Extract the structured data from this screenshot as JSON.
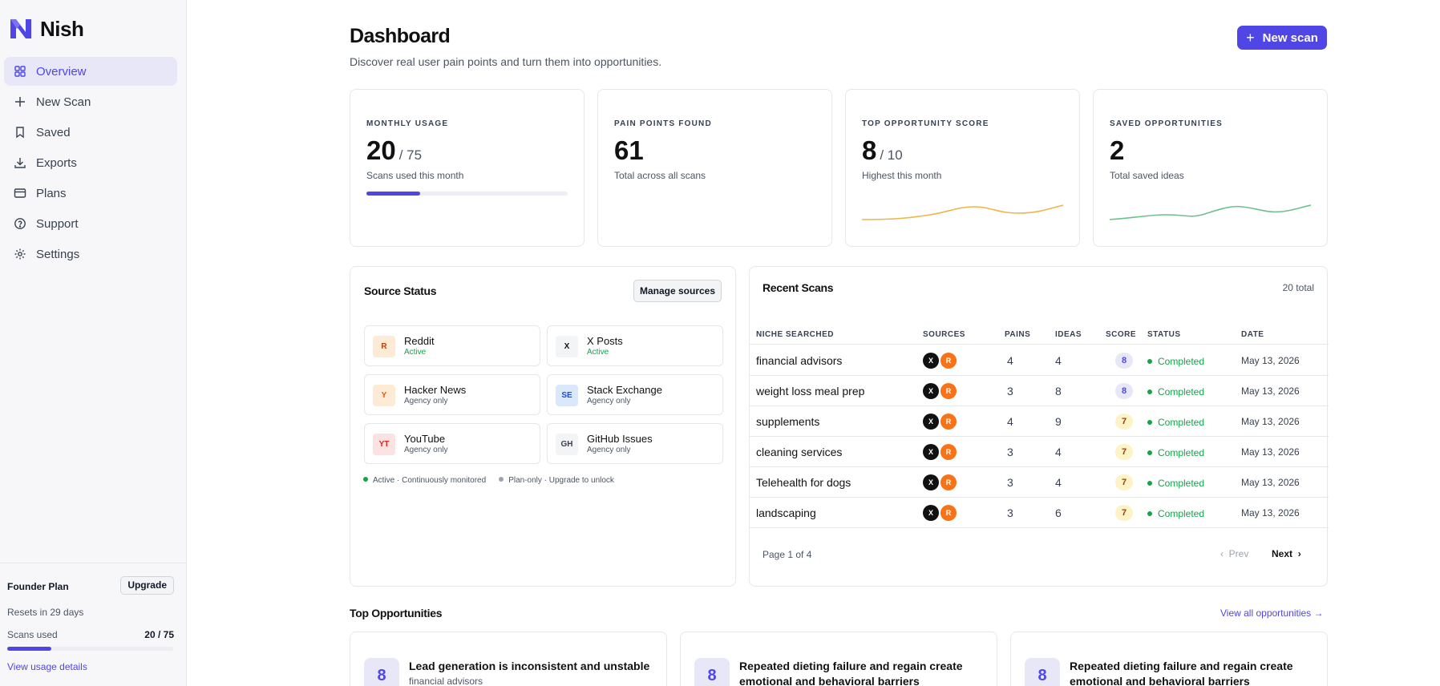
{
  "brand": {
    "name": "Nish"
  },
  "sidebar": {
    "items": [
      {
        "label": "Overview",
        "icon": "grid-icon"
      },
      {
        "label": "New Scan",
        "icon": "plus-icon"
      },
      {
        "label": "Saved",
        "icon": "bookmark-icon"
      },
      {
        "label": "Exports",
        "icon": "download-icon"
      },
      {
        "label": "Plans",
        "icon": "card-icon"
      },
      {
        "label": "Support",
        "icon": "help-icon"
      },
      {
        "label": "Settings",
        "icon": "gear-icon"
      }
    ],
    "plan": {
      "title": "Founder Plan",
      "upgrade_label": "Upgrade",
      "reset_text": "Resets in 29 days",
      "used_label": "Scans used",
      "used_value": "20 / 75",
      "used_fraction": 0.267,
      "link": "View usage details"
    }
  },
  "header": {
    "title": "Dashboard",
    "subtitle": "Discover real user pain points and turn them into opportunities.",
    "new_scan_label": "New scan"
  },
  "stats": [
    {
      "label": "Monthly Usage",
      "value": "20",
      "denominator": "/ 75",
      "sub": "Scans used this month",
      "progress": 0.267
    },
    {
      "label": "Pain Points Found",
      "value": "61",
      "denominator": "",
      "sub": "Total across all scans"
    },
    {
      "label": "Top Opportunity Score",
      "value": "8",
      "denominator": "/ 10",
      "sub": "Highest this month",
      "sparkline_color": "#f0b54a"
    },
    {
      "label": "Saved Opportunities",
      "value": "2",
      "denominator": "",
      "sub": "Total saved ideas",
      "sparkline_color": "#6cc18a"
    }
  ],
  "source_status": {
    "title": "Source Status",
    "manage_label": "Manage sources",
    "sources": [
      {
        "abbr": "R",
        "name": "Reddit",
        "status": "Active"
      },
      {
        "abbr": "X",
        "name": "X Posts",
        "status": "Active"
      },
      {
        "abbr": "Y",
        "name": "Hacker News",
        "status": "Agency only"
      },
      {
        "abbr": "SE",
        "name": "Stack Exchange",
        "status": "Agency only"
      },
      {
        "abbr": "YT",
        "name": "YouTube",
        "status": "Agency only"
      },
      {
        "abbr": "GH",
        "name": "GitHub Issues",
        "status": "Agency only"
      }
    ],
    "legend": {
      "active": "Active · Continuously monitored",
      "plan": "Plan-only · Upgrade to unlock"
    }
  },
  "recent_scans": {
    "title": "Recent Scans",
    "total": "20 total",
    "headers": [
      "NICHE SEARCHED",
      "SOURCES",
      "PAINS",
      "IDEAS",
      "SCORE",
      "STATUS",
      "DATE"
    ],
    "source_badges": [
      "X",
      "R"
    ],
    "rows": [
      {
        "niche": "financial advisors",
        "pains": "4",
        "ideas": "4",
        "score": "8",
        "status": "Completed",
        "date": "May 13, 2026"
      },
      {
        "niche": "weight loss meal prep",
        "pains": "3",
        "ideas": "8",
        "score": "8",
        "status": "Completed",
        "date": "May 13, 2026"
      },
      {
        "niche": "supplements",
        "pains": "4",
        "ideas": "9",
        "score": "7",
        "status": "Completed",
        "date": "May 13, 2026"
      },
      {
        "niche": "cleaning services",
        "pains": "3",
        "ideas": "4",
        "score": "7",
        "status": "Completed",
        "date": "May 13, 2026"
      },
      {
        "niche": "Telehealth for dogs",
        "pains": "3",
        "ideas": "4",
        "score": "7",
        "status": "Completed",
        "date": "May 13, 2026"
      },
      {
        "niche": "landscaping",
        "pains": "3",
        "ideas": "6",
        "score": "7",
        "status": "Completed",
        "date": "May 13, 2026"
      }
    ],
    "page_label": "Page 1 of 4",
    "prev_label": "Prev",
    "next_label": "Next"
  },
  "top_opportunities": {
    "title": "Top Opportunities",
    "view_all": "View all opportunities →",
    "cards": [
      {
        "score": "8",
        "title": "Lead generation is inconsistent and unstable",
        "sub": "financial advisors"
      },
      {
        "score": "8",
        "title": "Repeated dieting failure and regain create emotional and behavioral barriers",
        "sub": ""
      },
      {
        "score": "8",
        "title": "Repeated dieting failure and regain create emotional and behavioral barriers",
        "sub": ""
      }
    ]
  },
  "colors": {
    "accent": "#4f46e5",
    "success": "#16a34a",
    "orange": "#f97316"
  }
}
